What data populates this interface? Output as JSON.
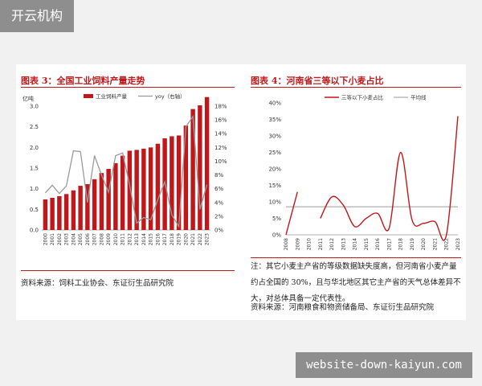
{
  "watermark_top": "开云机构",
  "watermark_bottom": "website-down-kaiyun.com",
  "left_chart": {
    "title": "图表 3：全国工业饲料产量走势",
    "source": "资料来源：饲料工业协会、东证衍生品研究院"
  },
  "right_chart": {
    "title": "图表 4：河南省三等以下小麦占比",
    "note": "注：其它小麦主产省的等级数据缺失度高，但河南省小麦产量约占全国的 30%，且与华北地区其它主产省的天气总体差异不大，对总体具备一定代表性。",
    "source": "资料来源：河南粮食和物资储备局、东证衍生品研究院"
  },
  "chart_data": [
    {
      "type": "bar",
      "title": "图表 3：全国工业饲料产量走势",
      "ylabel_left": "亿吨",
      "ylabel_right": "",
      "categories": [
        "2000",
        "2001",
        "2002",
        "2003",
        "2004",
        "2005",
        "2006",
        "2007",
        "2008",
        "2009",
        "2010",
        "2011",
        "2012",
        "2013",
        "2014",
        "2015",
        "2016",
        "2017",
        "2018",
        "2019",
        "2020",
        "2021",
        "2022",
        "2023"
      ],
      "ylim_left": [
        0,
        3.0
      ],
      "yticks_left": [
        "0.0",
        "0.5",
        "1.0",
        "1.5",
        "2.0",
        "2.5",
        "3.0"
      ],
      "ylim_right": [
        0,
        18
      ],
      "yticks_right": [
        "0%",
        "2%",
        "4%",
        "6%",
        "8%",
        "10%",
        "12%",
        "14%",
        "16%",
        "18%"
      ],
      "legend_position": "top",
      "color_bar": "#c0181a",
      "color_line": "#9a9a9a",
      "series": [
        {
          "name": "工业饲料产量",
          "kind": "bar",
          "axis": "left",
          "values": [
            0.74,
            0.78,
            0.82,
            0.87,
            0.96,
            1.07,
            1.11,
            1.23,
            1.38,
            1.48,
            1.62,
            1.8,
            1.92,
            1.94,
            1.97,
            2.0,
            2.09,
            2.22,
            2.27,
            2.29,
            2.53,
            2.93,
            3.02,
            3.22
          ]
        },
        {
          "name": "yoy（右轴）",
          "kind": "line",
          "axis": "right",
          "values": [
            5.4,
            6.5,
            5.3,
            6.4,
            11.5,
            11.4,
            4.0,
            10.8,
            8.0,
            5.5,
            10.8,
            11.2,
            6.5,
            1.0,
            1.8,
            1.5,
            4.4,
            7.0,
            2.2,
            0.5,
            15.0,
            16.5,
            3.0,
            6.6
          ]
        }
      ]
    },
    {
      "type": "line",
      "title": "图表 4：河南省三等以下小麦占比",
      "categories": [
        "2008",
        "2009",
        "2010",
        "2011",
        "2012",
        "2013",
        "2014",
        "2015",
        "2016",
        "2017",
        "2018",
        "2019",
        "2020",
        "2021",
        "2022",
        "2023"
      ],
      "ylim": [
        0,
        40
      ],
      "yticks": [
        "0%",
        "5%",
        "10%",
        "15%",
        "20%",
        "25%",
        "30%",
        "35%",
        "40%"
      ],
      "legend_position": "top",
      "series": [
        {
          "name": "三等以下小麦占比",
          "color": "#c0181a",
          "values": [
            0.0,
            13.0,
            null,
            5.0,
            11.5,
            9.0,
            2.5,
            5.0,
            6.5,
            2.0,
            25.0,
            4.5,
            3.5,
            4.0,
            0.0,
            36.0
          ]
        },
        {
          "name": "平均线",
          "color": "#9a9a9a",
          "values": [
            8.5,
            8.5,
            8.5,
            8.5,
            8.5,
            8.5,
            8.5,
            8.5,
            8.5,
            8.5,
            8.5,
            8.5,
            8.5,
            8.5,
            8.5,
            8.5
          ]
        }
      ]
    }
  ]
}
